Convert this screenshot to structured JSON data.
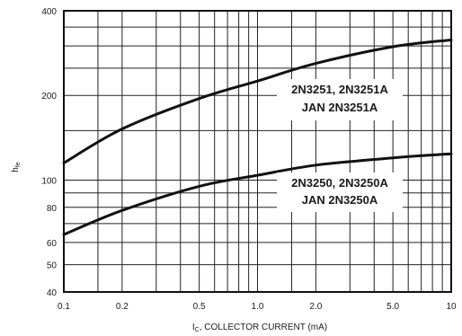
{
  "chart_data": {
    "type": "line",
    "xlabel_main": "I",
    "xlabel_sub": "C",
    "xlabel_rest": ", COLLECTOR CURRENT (mA)",
    "ylabel_main": "h",
    "ylabel_sub": "fe",
    "x_scale": "log",
    "y_scale": "log",
    "xlim": [
      0.1,
      10
    ],
    "ylim": [
      40,
      400
    ],
    "grid": true,
    "x_ticks": [
      {
        "value": 0.1,
        "label": "0.1"
      },
      {
        "value": 0.2,
        "label": "0.2"
      },
      {
        "value": 0.5,
        "label": "0.5"
      },
      {
        "value": 1,
        "label": "1.0"
      },
      {
        "value": 2,
        "label": "2.0"
      },
      {
        "value": 5,
        "label": "5.0"
      },
      {
        "value": 10,
        "label": "10"
      }
    ],
    "y_ticks": [
      {
        "value": 40,
        "label": "40"
      },
      {
        "value": 50,
        "label": "50"
      },
      {
        "value": 60,
        "label": "60"
      },
      {
        "value": 80,
        "label": "80"
      },
      {
        "value": 100,
        "label": "100"
      },
      {
        "value": 200,
        "label": "200"
      },
      {
        "value": 400,
        "label": "400"
      }
    ],
    "x_grid": [
      0.1,
      0.15,
      0.2,
      0.3,
      0.4,
      0.5,
      0.6,
      0.7,
      0.8,
      0.9,
      1,
      1.5,
      2,
      3,
      4,
      5,
      6,
      7,
      8,
      9,
      10
    ],
    "y_grid": [
      40,
      50,
      60,
      70,
      80,
      90,
      100,
      150,
      200,
      250,
      300,
      350,
      400
    ],
    "series": [
      {
        "label_lines": [
          "2N3251, 2N3251A",
          "JAN 2N3251A"
        ],
        "x": [
          0.1,
          0.2,
          0.5,
          1,
          2,
          5,
          10
        ],
        "y": [
          115,
          152,
          195,
          225,
          260,
          298,
          315
        ]
      },
      {
        "label_lines": [
          "2N3250, 2N3250A",
          "JAN 2N3250A"
        ],
        "x": [
          0.1,
          0.2,
          0.5,
          1,
          2,
          5,
          10
        ],
        "y": [
          64,
          78,
          95,
          104,
          113,
          120,
          124
        ]
      }
    ]
  }
}
